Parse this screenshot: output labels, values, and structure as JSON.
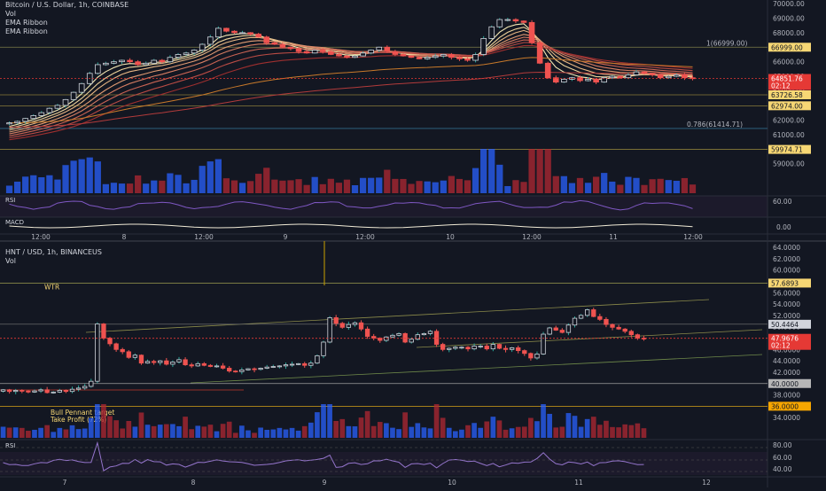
{
  "panes": [
    {
      "title": "Bitcoin / U.S. Dollar, 1h, COINBASE",
      "legend": [
        "Vol",
        "EMA Ribbon",
        "EMA Ribbon"
      ],
      "indicator_labels": [
        "RSI",
        "MACD"
      ],
      "price_ticks": [
        "70000.00",
        "69000.00",
        "68000.00",
        "67000.00",
        "66000.00",
        "65000.00",
        "64000.00",
        "63000.00",
        "62000.00",
        "61000.00",
        "60000.00",
        "59000.00"
      ],
      "rsi_tick": "60.00",
      "macd_tick": "0.00",
      "fib_labels": [
        "1(66999.00)",
        "0.786(61414.71)"
      ],
      "price_tags": [
        {
          "text": "66999.00",
          "price": 66999.0,
          "color": "#f7d774"
        },
        {
          "text": "63726.58",
          "price": 63726.58,
          "color": "#f7d774"
        },
        {
          "text": "62974.00",
          "price": 62974.0,
          "color": "#f7d774"
        },
        {
          "text": "59974.71",
          "price": 59974.71,
          "color": "#f7d774"
        }
      ],
      "last_price": {
        "price_text": "64851.76",
        "countdown": "02:12",
        "price": 64851.76,
        "color": "#e53935"
      },
      "time_labels": [
        "12:00",
        "8",
        "12:00",
        "9",
        "12:00",
        "10",
        "12:00",
        "11",
        "12:00"
      ]
    },
    {
      "title": "HNT / USD, 1h, BINANCEUS",
      "legend": [
        "Vol"
      ],
      "indicator_labels": [
        "RSI"
      ],
      "price_ticks": [
        "64.0000",
        "62.0000",
        "60.0000",
        "58.0000",
        "56.0000",
        "54.0000",
        "52.0000",
        "50.0000",
        "48.0000",
        "46.0000",
        "44.0000",
        "42.0000",
        "40.0000",
        "38.0000",
        "36.0000",
        "34.0000"
      ],
      "rsi_ticks": [
        "80.00",
        "60.00",
        "40.00"
      ],
      "annotations": [
        "WTR",
        "Bull Pennant target",
        "Take Profit (72%)"
      ],
      "price_tags": [
        {
          "text": "57.6893",
          "price": 57.6893,
          "color": "#f7d774"
        },
        {
          "text": "50.4464",
          "price": 50.4464,
          "color": "#d1d4dc"
        },
        {
          "text": "40.0000",
          "price": 40.0,
          "color": "#b7b7b7"
        },
        {
          "text": "36.0000",
          "price": 36.0,
          "color": "#f7a600"
        }
      ],
      "last_price": {
        "price_text": "47.9676",
        "countdown": "02:12",
        "price": 47.9676,
        "color": "#e53935"
      },
      "time_labels": [
        "7",
        "8",
        "9",
        "10",
        "11",
        "12"
      ]
    }
  ],
  "chart_data": [
    {
      "type": "candlestick",
      "title": "Bitcoin / U.S. Dollar, 1h, COINBASE",
      "xlabel": "",
      "ylabel": "",
      "ylim": [
        58000,
        70000
      ],
      "colors": {
        "up": "#26a69a",
        "down": "#ef5350",
        "ema_top": "#f3e7b3",
        "ema_bottom": "#9e2f2f"
      },
      "close_path": [
        61800,
        61900,
        62100,
        62300,
        62500,
        62800,
        63000,
        63400,
        63900,
        64500,
        65200,
        65800,
        65900,
        66000,
        66100,
        66000,
        65800,
        65900,
        66100,
        66000,
        66300,
        66500,
        66600,
        66800,
        67200,
        67700,
        68300,
        68100,
        68000,
        68000,
        67900,
        67700,
        67300,
        67200,
        67000,
        66900,
        66700,
        66600,
        66800,
        66700,
        66500,
        66400,
        66300,
        66400,
        66600,
        66800,
        67000,
        66700,
        66500,
        66400,
        66300,
        66200,
        66300,
        66400,
        66500,
        66300,
        66200,
        66100,
        66500,
        67600,
        68400,
        68900,
        68900,
        68800,
        68700,
        67300,
        65900,
        64900,
        64600,
        64800,
        64900,
        64700,
        64800,
        64600,
        64900,
        65000,
        64900,
        65100,
        65300,
        65200,
        65100,
        64900,
        65000,
        65100,
        64900,
        64850
      ],
      "ema_ribbon_last": [
        65760,
        65700,
        65640,
        65580,
        65520,
        65460,
        65400,
        65340
      ],
      "long_emas_last": [
        64900,
        64600
      ]
    },
    {
      "type": "candlestick",
      "title": "HNT / USD, 1h, BINANCEUS",
      "xlabel": "",
      "ylabel": "",
      "ylim": [
        32,
        64
      ],
      "colors": {
        "up": "#26a69a",
        "down": "#ef5350"
      },
      "close_path": [
        38.9,
        38.6,
        38.8,
        38.7,
        38.5,
        38.7,
        38.9,
        38.4,
        38.5,
        38.8,
        38.6,
        39.0,
        39.2,
        39.5,
        40.4,
        50.5,
        48.0,
        47.0,
        46.0,
        45.6,
        44.6,
        45.0,
        43.6,
        43.9,
        43.7,
        44.0,
        43.4,
        43.8,
        44.2,
        43.3,
        43.1,
        43.5,
        43.2,
        43.0,
        43.1,
        42.7,
        42.2,
        42.1,
        42.4,
        42.6,
        42.5,
        42.7,
        42.9,
        43.0,
        43.1,
        43.3,
        43.4,
        43.5,
        43.2,
        43.6,
        44.9,
        47.3,
        51.6,
        50.6,
        49.9,
        50.4,
        50.7,
        49.6,
        48.3,
        48.0,
        47.6,
        48.2,
        48.5,
        48.8,
        47.3,
        47.8,
        48.6,
        48.8,
        49.2,
        46.9,
        46.0,
        46.2,
        46.4,
        46.4,
        46.1,
        46.6,
        46.6,
        46.1,
        46.9,
        46.2,
        46.0,
        46.3,
        45.8,
        45.3,
        44.5,
        45.2,
        48.7,
        49.8,
        49.4,
        49.0,
        50.3,
        51.5,
        52.0,
        53.0,
        51.8,
        51.3,
        50.4,
        49.9,
        49.6,
        49.2,
        48.6,
        48.0,
        47.97
      ],
      "rsi_levels": [
        80,
        60,
        40
      ]
    }
  ]
}
